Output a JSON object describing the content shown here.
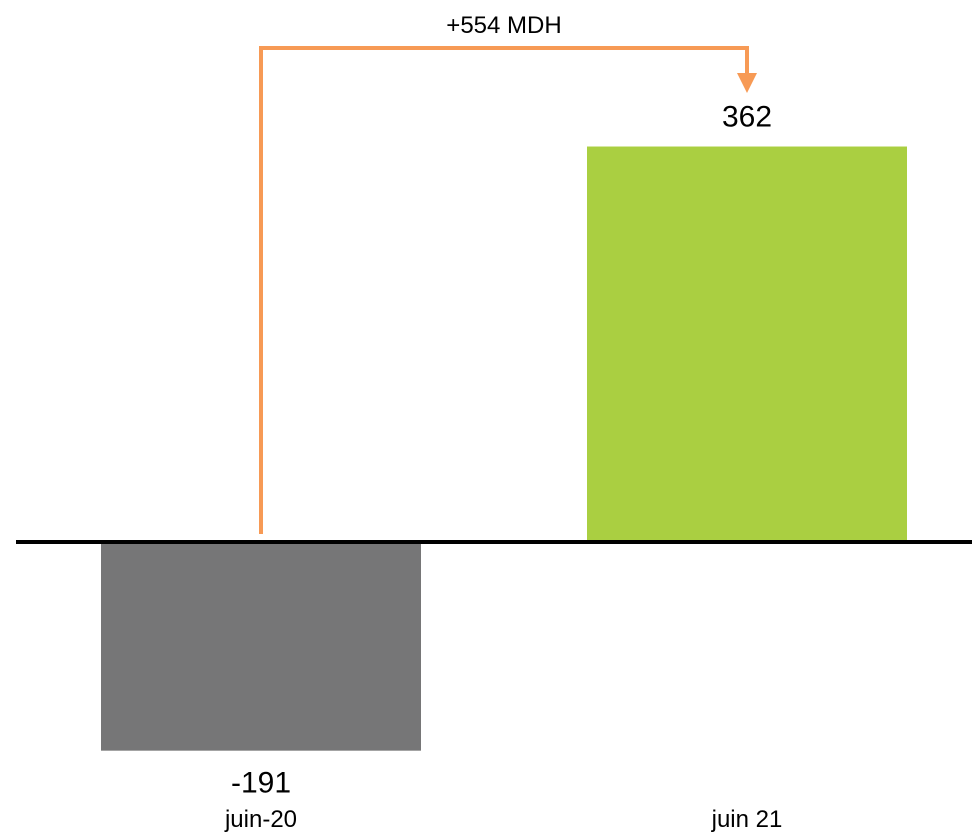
{
  "chart_data": {
    "type": "bar",
    "categories": [
      "juin-20",
      "juin 21"
    ],
    "values": [
      -191,
      362
    ],
    "value_labels": [
      "-191",
      "362"
    ],
    "bar_colors": [
      "#767677",
      "#aacf41"
    ],
    "annotation": {
      "text": "+554 MDH",
      "from_category": "juin-20",
      "to_category": "juin 21",
      "color": "#f79a55"
    },
    "title": "",
    "xlabel": "",
    "ylabel": "",
    "ylim": [
      -191,
      362
    ],
    "grid": false,
    "legend": "none"
  }
}
